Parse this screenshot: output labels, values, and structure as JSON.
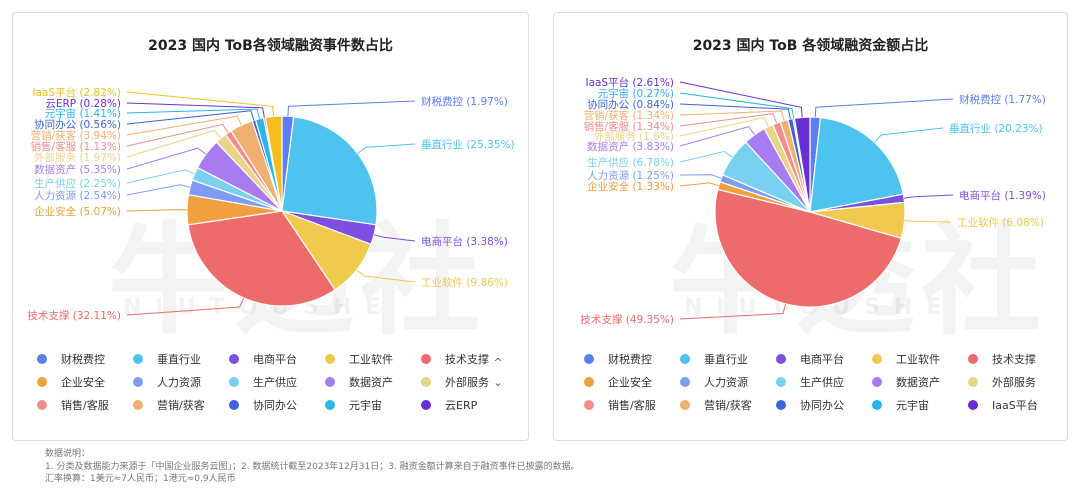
{
  "watermark": {
    "big": "牛透社",
    "small": "NIUTOUSHE"
  },
  "notes": {
    "heading": "数据说明：",
    "line1": "1. 分类及数据能力来源于「中国企业服务云图」；2. 数据统计截至2023年12月31日；3. 融资金额计算来自于融资事件已披露的数据。",
    "line2": "汇率换算：1美元≈7人民币；1港元≈0.9人民币"
  },
  "legend_nav": {
    "up": "^",
    "down": "⌄"
  },
  "chart_data": [
    {
      "type": "pie",
      "title": "2023 国内 ToB各领域融资事件数占比",
      "slices": [
        {
          "name": "财税费控",
          "value": 1.97,
          "label": "财税费控 (1.97%)",
          "color": "#5b7ef0"
        },
        {
          "name": "垂直行业",
          "value": 25.35,
          "label": "垂直行业 (25.35%)",
          "color": "#4fc3ef"
        },
        {
          "name": "电商平台",
          "value": 3.38,
          "label": "电商平台 (3.38%)",
          "color": "#7b4fe0"
        },
        {
          "name": "工业软件",
          "value": 9.86,
          "label": "工业软件 (9.86%)",
          "color": "#f0c94f"
        },
        {
          "name": "技术支撑",
          "value": 32.11,
          "label": "技术支撑 (32.11%)",
          "color": "#ee6b6b"
        },
        {
          "name": "企业安全",
          "value": 5.07,
          "label": "企业安全 (5.07%)",
          "color": "#f0a040"
        },
        {
          "name": "人力资源",
          "value": 2.54,
          "label": "人力资源 (2.54%)",
          "color": "#7e9cf5"
        },
        {
          "name": "生产供应",
          "value": 2.25,
          "label": "生产供应 (2.25%)",
          "color": "#7ad0f0"
        },
        {
          "name": "数据资产",
          "value": 5.35,
          "label": "数据资产 (5.35%)",
          "color": "#a77cf0"
        },
        {
          "name": "外部服务",
          "value": 1.97,
          "label": "外部服务 (1.97%)",
          "color": "#ead48a"
        },
        {
          "name": "销售/客服",
          "value": 1.13,
          "label": "销售/客服 (1.13%)",
          "color": "#f08e8e"
        },
        {
          "name": "营销/获客",
          "value": 3.94,
          "label": "营销/获客 (3.94%)",
          "color": "#f0b070"
        },
        {
          "name": "协同办公",
          "value": 0.56,
          "label": "协同办公 (0.56%)",
          "color": "#3f63d8"
        },
        {
          "name": "元宇宙",
          "value": 1.41,
          "label": "元宇宙 (1.41%)",
          "color": "#29b5e8"
        },
        {
          "name": "云ERP",
          "value": 0.28,
          "label": "云ERP (0.28%)",
          "color": "#6a2fd4"
        },
        {
          "name": "IaaS平台",
          "value": 2.82,
          "label": "IaaS平台 (2.82%)",
          "color": "#f2be1e"
        }
      ],
      "legend": [
        "财税费控",
        "垂直行业",
        "电商平台",
        "工业软件",
        "技术支撑",
        "企业安全",
        "人力资源",
        "生产供应",
        "数据资产",
        "外部服务",
        "销售/客服",
        "营销/获客",
        "协同办公",
        "元宇宙",
        "云ERP"
      ]
    },
    {
      "type": "pie",
      "title": "2023 国内 ToB 各领域融资金额占比",
      "slices": [
        {
          "name": "财税费控",
          "value": 1.77,
          "label": "财税费控 (1.77%)",
          "color": "#5b7ef0"
        },
        {
          "name": "垂直行业",
          "value": 20.23,
          "label": "垂直行业 (20.23%)",
          "color": "#4fc3ef"
        },
        {
          "name": "电商平台",
          "value": 1.39,
          "label": "电商平台 (1.39%)",
          "color": "#7b4fe0"
        },
        {
          "name": "工业软件",
          "value": 6.08,
          "label": "工业软件 (6.08%)",
          "color": "#f0c94f"
        },
        {
          "name": "技术支撑",
          "value": 49.35,
          "label": "技术支撑 (49.35%)",
          "color": "#ee6b6b"
        },
        {
          "name": "企业安全",
          "value": 1.33,
          "label": "企业安全 (1.33%)",
          "color": "#f0a040"
        },
        {
          "name": "人力资源",
          "value": 1.25,
          "label": "人力资源 (1.25%)",
          "color": "#7e9cf5"
        },
        {
          "name": "生产供应",
          "value": 6.78,
          "label": "生产供应 (6.78%)",
          "color": "#7ad0f0"
        },
        {
          "name": "数据资产",
          "value": 3.83,
          "label": "数据资产 (3.83%)",
          "color": "#a77cf0"
        },
        {
          "name": "外部服务",
          "value": 1.6,
          "label": "外部服务 (1.6%)",
          "color": "#ead48a"
        },
        {
          "name": "销售/客服",
          "value": 1.34,
          "label": "销售/客服 (1.34%)",
          "color": "#f08e8e"
        },
        {
          "name": "营销/获客",
          "value": 1.34,
          "label": "营销/获客 (1.34%)",
          "color": "#f0b070"
        },
        {
          "name": "协同办公",
          "value": 0.84,
          "label": "协同办公 (0.84%)",
          "color": "#3f63d8"
        },
        {
          "name": "元宇宙",
          "value": 0.27,
          "label": "元宇宙 (0.27%)",
          "color": "#29b5e8"
        },
        {
          "name": "IaaS平台",
          "value": 2.61,
          "label": "IaaS平台 (2.61%)",
          "color": "#6a2fd4"
        }
      ],
      "legend": [
        "财税费控",
        "垂直行业",
        "电商平台",
        "工业软件",
        "技术支撑",
        "企业安全",
        "人力资源",
        "生产供应",
        "数据资产",
        "外部服务",
        "销售/客服",
        "营销/获客",
        "协同办公",
        "元宇宙",
        "IaaS平台"
      ]
    }
  ]
}
